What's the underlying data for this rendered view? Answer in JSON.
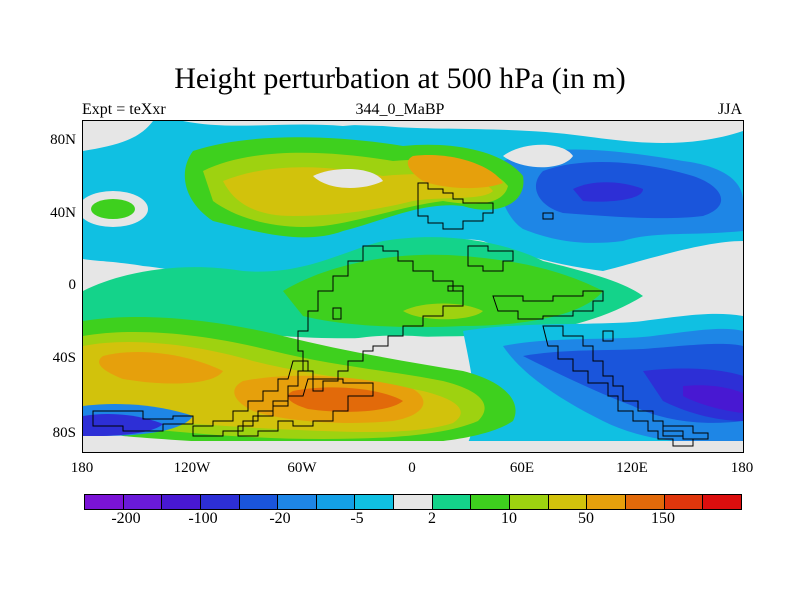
{
  "title": "Height perturbation at 500 hPa (in m)",
  "subtitle_left": "Expt = teXxr",
  "subtitle_center": "344_0_MaBP",
  "subtitle_right": "JJA",
  "lat_labels": [
    "80N",
    "40N",
    "0",
    "40S",
    "80S"
  ],
  "lon_labels": [
    "180",
    "120W",
    "60W",
    "0",
    "60E",
    "120E",
    "180"
  ],
  "colorbar": {
    "colors": [
      "#7a13d6",
      "#6a1ad9",
      "#4818d2",
      "#2d2fd6",
      "#1a55db",
      "#1e86e6",
      "#14a0e6",
      "#10c0e2",
      "#e6e6e6",
      "#14d38a",
      "#3ed01e",
      "#9ed210",
      "#d2c20c",
      "#e6a00c",
      "#e26a0a",
      "#e0360c",
      "#dc0e0e"
    ],
    "labels": [
      "-200",
      "-100",
      "-20",
      "-5",
      "2",
      "10",
      "50",
      "150"
    ]
  },
  "map_colors": {
    "background": "#e6e6e6",
    "cyan": "#10c0e2",
    "light_blue": "#1e86e6",
    "blue": "#1a55db",
    "dark_blue": "#2d2fd6",
    "indigo": "#4818d2",
    "teal": "#14d38a",
    "green": "#3ed01e",
    "yellow_green": "#9ed210",
    "yellow": "#d2c20c",
    "orange": "#e6a00c",
    "dark_orange": "#e26a0a"
  }
}
